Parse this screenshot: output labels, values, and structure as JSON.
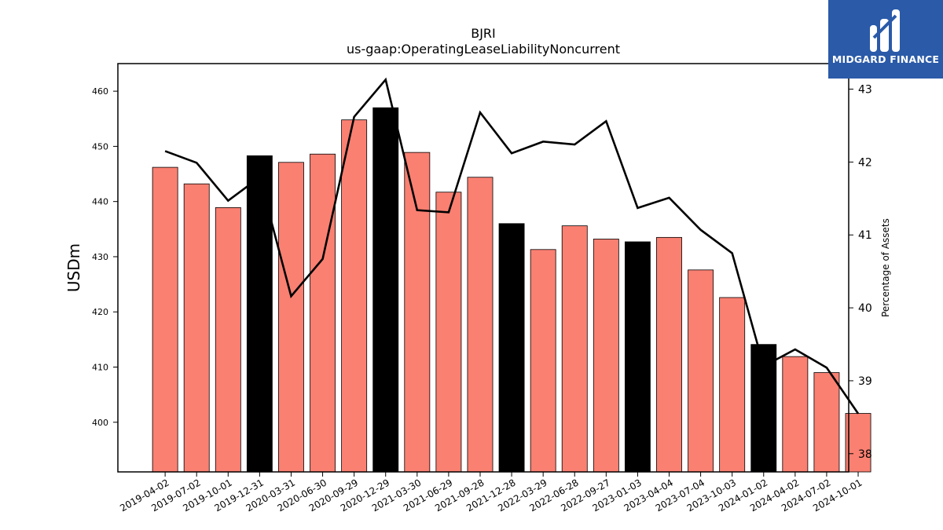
{
  "chart_data": {
    "type": "bar",
    "title": "BJRI",
    "subtitle": "us-gaap:OperatingLeaseLiabilityNoncurrent",
    "ylabel": "USDm",
    "y2label": "Percentage of Assets",
    "ylim": [
      391,
      465
    ],
    "y2lim": [
      37.75,
      43.35
    ],
    "yticks": [
      400,
      410,
      420,
      430,
      440,
      450,
      460
    ],
    "y2ticks": [
      38,
      39,
      40,
      41,
      42,
      43
    ],
    "categories": [
      "2019-04-02",
      "2019-07-02",
      "2019-10-01",
      "2019-12-31",
      "2020-03-31",
      "2020-06-30",
      "2020-09-29",
      "2020-12-29",
      "2021-03-30",
      "2021-06-29",
      "2021-09-28",
      "2021-12-28",
      "2022-03-29",
      "2022-06-28",
      "2022-09-27",
      "2023-01-03",
      "2023-04-04",
      "2023-07-04",
      "2023-10-03",
      "2024-01-02",
      "2024-04-02",
      "2024-07-02",
      "2024-10-01"
    ],
    "series": [
      {
        "type": "bar",
        "values": [
          446.2,
          443.2,
          438.9,
          448.3,
          447.1,
          448.6,
          454.8,
          457.0,
          448.9,
          441.7,
          444.4,
          436.0,
          431.3,
          435.6,
          433.2,
          432.7,
          433.5,
          427.6,
          422.6,
          414.1,
          411.9,
          409.0,
          401.6
        ],
        "colors": [
          "#fa8072",
          "#fa8072",
          "#fa8072",
          "#000000",
          "#fa8072",
          "#fa8072",
          "#fa8072",
          "#000000",
          "#fa8072",
          "#fa8072",
          "#fa8072",
          "#000000",
          "#fa8072",
          "#fa8072",
          "#fa8072",
          "#000000",
          "#fa8072",
          "#fa8072",
          "#fa8072",
          "#000000",
          "#fa8072",
          "#fa8072",
          "#fa8072"
        ]
      },
      {
        "type": "line",
        "axis": "right",
        "values": [
          42.15,
          41.99,
          41.47,
          41.79,
          40.16,
          40.67,
          42.62,
          43.13,
          41.34,
          41.31,
          42.68,
          42.12,
          42.28,
          42.24,
          42.56,
          41.37,
          41.51,
          41.07,
          40.75,
          39.2,
          39.43,
          39.18,
          38.55
        ],
        "color": "#000000"
      }
    ],
    "grid": false
  },
  "colors": {
    "bar": "#fa8072",
    "bar_highlight": "#000000",
    "logo_bg": "#2a5aa8"
  },
  "logo": {
    "text": "MIDGARD FINANCE",
    "icon": "midgard-logo-icon"
  }
}
